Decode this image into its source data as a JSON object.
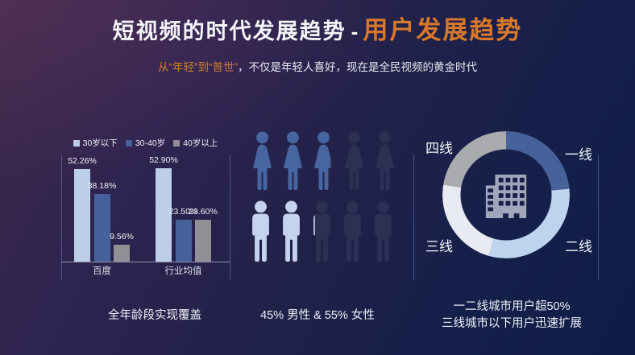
{
  "header": {
    "title_main": "短视频的时代发展趋势",
    "title_separator": "-",
    "title_accent": "用户发展趋势",
    "subtitle_accent": "从“年轻”到“普世”",
    "subtitle_rest": "，不仅是年轻人喜好，现在是全民视频的黄金时代"
  },
  "colors": {
    "accent_orange": "#d8782b",
    "bar_light": "#bccee8",
    "bar_blue": "#44619b",
    "bar_gray": "#8e9095",
    "female_fill": "#4766a1",
    "male_fill": "#c4d4ee",
    "person_empty": "#2c3054",
    "donut_tier1": "#47629b",
    "donut_tier2": "#bed3ed",
    "donut_tier3": "#e8ebf1",
    "donut_tier4": "#a9abae",
    "building": "#a0a7bd",
    "building_window": "#1a1f45"
  },
  "chart_data": [
    {
      "type": "bar",
      "title": "全年龄段实现覆盖",
      "categories": [
        "百度",
        "行业均值"
      ],
      "series": [
        {
          "name": "30岁以下",
          "color_key": "bar_light",
          "values": [
            52.26,
            52.9
          ]
        },
        {
          "name": "30-40岁",
          "color_key": "bar_blue",
          "values": [
            38.18,
            23.5
          ]
        },
        {
          "name": "40岁以上",
          "color_key": "bar_gray",
          "values": [
            9.56,
            23.6
          ]
        }
      ],
      "value_suffix": "%",
      "ylim": [
        0,
        60
      ],
      "grid": false,
      "legend_position": "top"
    },
    {
      "type": "pictogram",
      "title": "45% 男性 & 55% 女性",
      "rows": [
        {
          "label": "女性",
          "percent": 55,
          "icons": 5,
          "shape": "female",
          "fill_key": "female_fill"
        },
        {
          "label": "男性",
          "percent": 45,
          "icons": 5,
          "shape": "male",
          "fill_key": "male_fill"
        }
      ]
    },
    {
      "type": "pie",
      "title": "一二线城市用户超50% 三线城市以下用户迅速扩展",
      "donut": true,
      "labels": [
        "一线",
        "二线",
        "三线",
        "四线"
      ],
      "values": [
        23.5,
        31,
        23,
        22.5
      ],
      "color_keys": [
        "donut_tier1",
        "donut_tier2",
        "donut_tier3",
        "donut_tier4"
      ],
      "start_angle_deg": 0,
      "center_icon": "building-icon"
    }
  ],
  "captions": {
    "age": "全年龄段实现覆盖",
    "gender": "45% 男性 & 55% 女性",
    "city_line1": "一二线城市用户超50%",
    "city_line2": "三线城市以下用户迅速扩展"
  }
}
